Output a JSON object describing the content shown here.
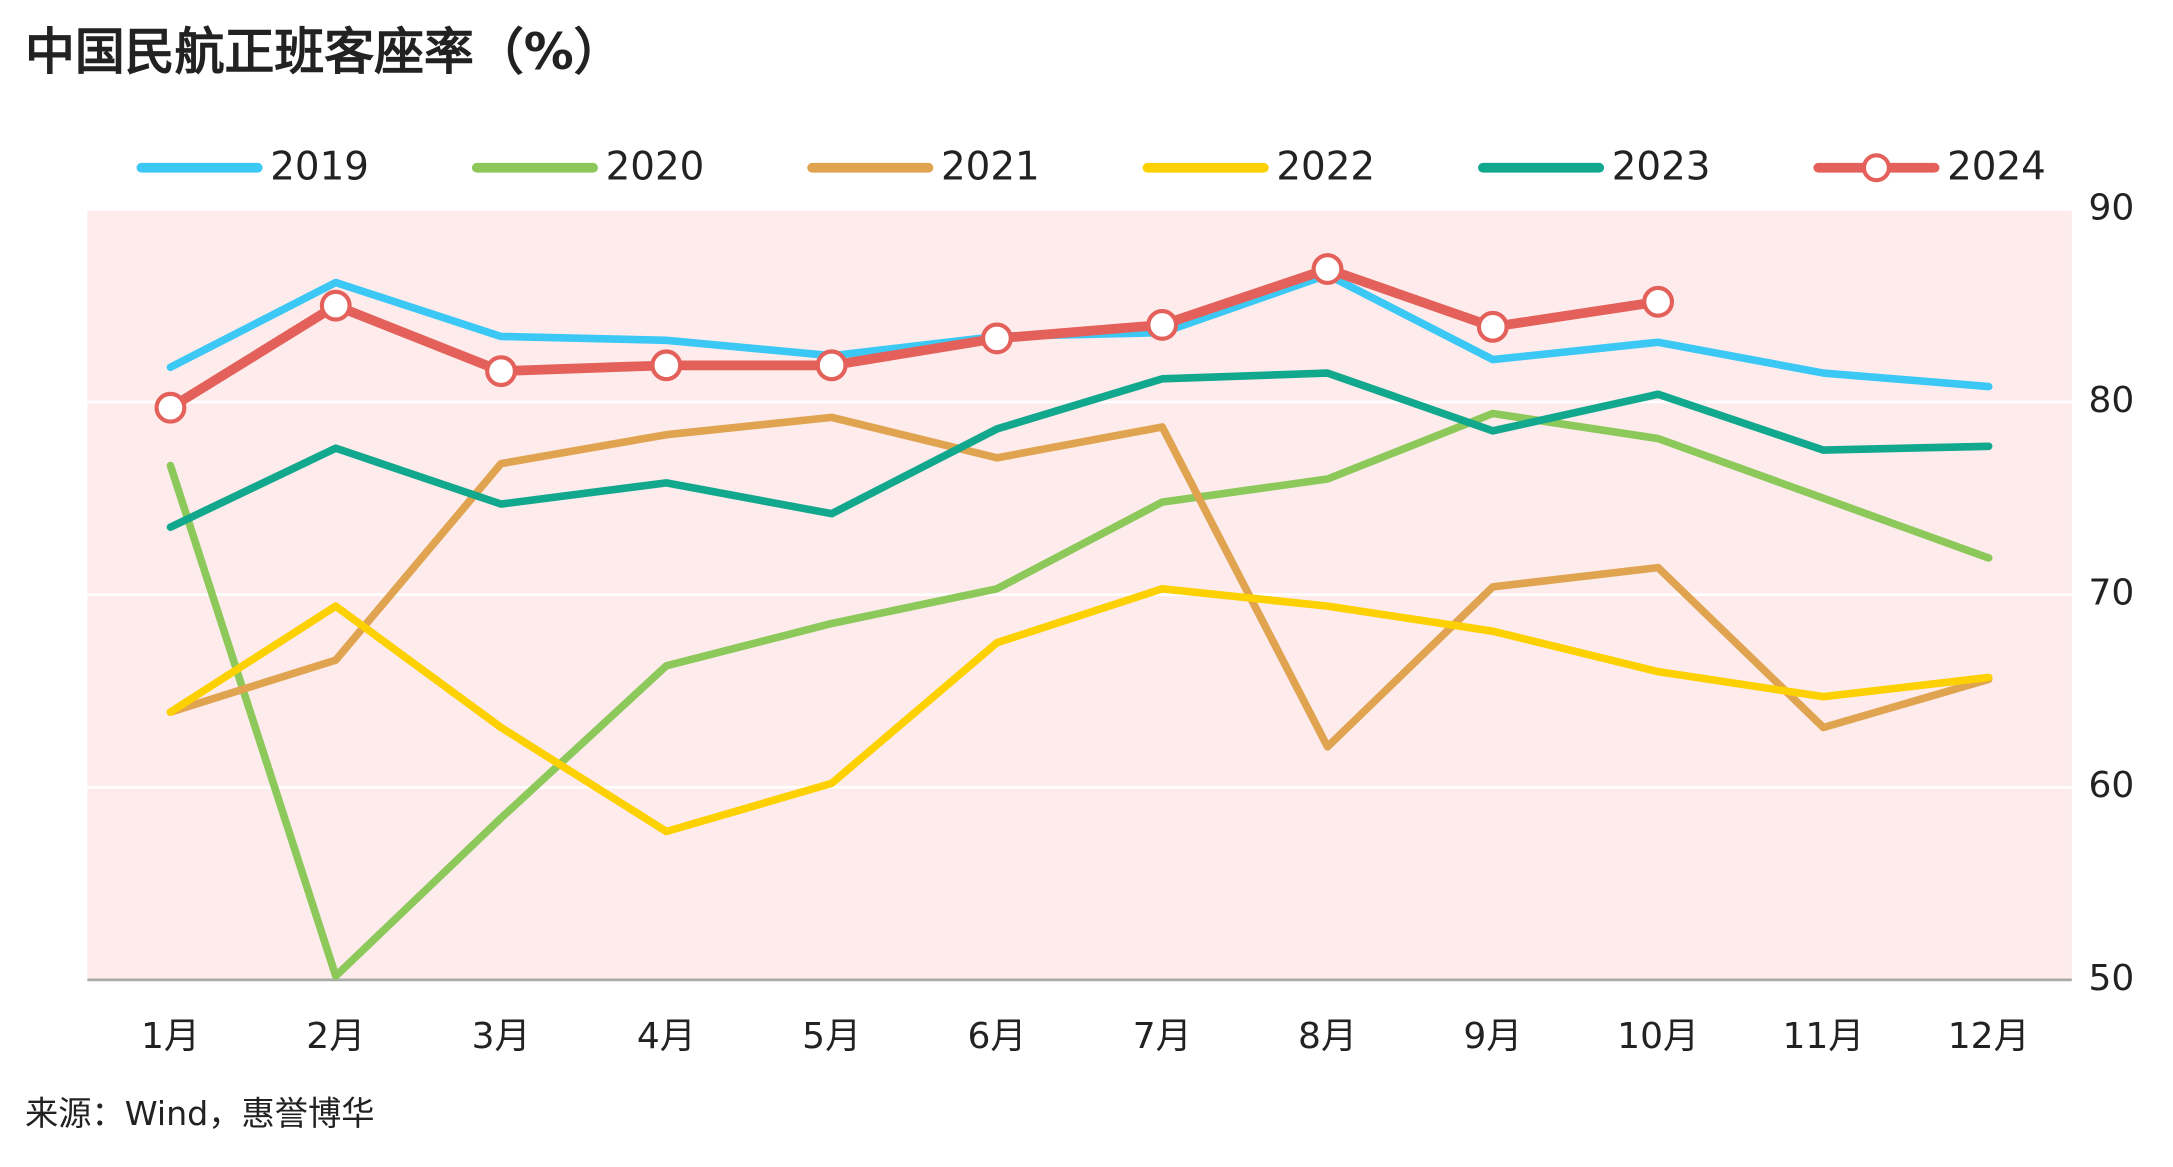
{
  "chart_data": {
    "type": "line",
    "title": "中国民航正班客座率（%）",
    "source": "来源：Wind，惠誉博华",
    "categories": [
      "1月",
      "2月",
      "3月",
      "4月",
      "5月",
      "6月",
      "7月",
      "8月",
      "9月",
      "10月",
      "11月",
      "12月"
    ],
    "series": [
      {
        "name": "2019",
        "color": "#3cc8f5",
        "values": [
          81.8,
          86.2,
          83.4,
          83.2,
          82.4,
          83.4,
          83.6,
          86.6,
          82.2,
          83.1,
          81.5,
          80.8
        ]
      },
      {
        "name": "2020",
        "color": "#8cc85a",
        "values": [
          76.7,
          50.2,
          58.4,
          66.3,
          68.5,
          70.3,
          74.8,
          76.0,
          79.4,
          78.1,
          75.0,
          71.9
        ]
      },
      {
        "name": "2021",
        "color": "#e0a350",
        "values": [
          63.9,
          66.6,
          76.8,
          78.3,
          79.2,
          77.1,
          78.7,
          62.1,
          70.4,
          71.4,
          63.1,
          65.6
        ]
      },
      {
        "name": "2022",
        "color": "#fdd000",
        "values": [
          63.9,
          69.4,
          63.1,
          57.7,
          60.2,
          67.5,
          70.3,
          69.4,
          68.1,
          66.0,
          64.7,
          65.7
        ]
      },
      {
        "name": "2023",
        "color": "#12a88e",
        "values": [
          73.5,
          77.6,
          74.7,
          75.8,
          74.2,
          78.6,
          81.2,
          81.5,
          78.5,
          80.4,
          77.5,
          77.7
        ]
      },
      {
        "name": "2024",
        "color": "#e4605a",
        "markers": true,
        "values": [
          79.7,
          85.0,
          81.6,
          81.9,
          81.9,
          83.3,
          84.0,
          86.9,
          83.9,
          85.2,
          null,
          null
        ]
      }
    ],
    "ylim": [
      50,
      90
    ],
    "yticks": [
      50,
      60,
      70,
      80,
      90
    ],
    "y_axis_side": "right",
    "grid": true,
    "legend": "top",
    "plot_background": "#fdeceb"
  }
}
